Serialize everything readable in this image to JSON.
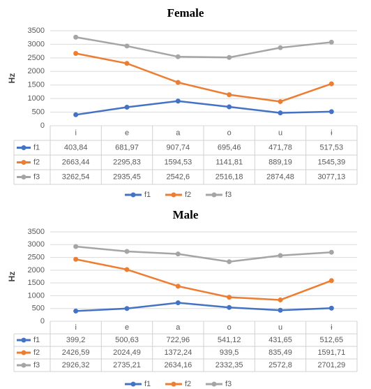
{
  "chart_data": [
    {
      "type": "line",
      "title": "Female",
      "y_label": "Hz",
      "categories": [
        "i",
        "e",
        "a",
        "o",
        "u",
        "ɨ"
      ],
      "series": [
        {
          "name": "f1",
          "color": "#4472c4",
          "values": [
            403.84,
            681.97,
            907.74,
            695.46,
            471.78,
            517.53
          ],
          "value_labels": [
            "403,84",
            "681,97",
            "907,74",
            "695,46",
            "471,78",
            "517,53"
          ]
        },
        {
          "name": "f2",
          "color": "#ed7d31",
          "values": [
            2663.44,
            2295.83,
            1594.53,
            1141.81,
            889.19,
            1545.39
          ],
          "value_labels": [
            "2663,44",
            "2295,83",
            "1594,53",
            "1141,81",
            "889,19",
            "1545,39"
          ]
        },
        {
          "name": "f3",
          "color": "#a5a5a5",
          "values": [
            3262.54,
            2935.45,
            2542.6,
            2516.18,
            2874.48,
            3077.13
          ],
          "value_labels": [
            "3262,54",
            "2935,45",
            "2542,6",
            "2516,18",
            "2874,48",
            "3077,13"
          ]
        }
      ],
      "ylim": [
        0,
        3500
      ],
      "yticks": [
        0,
        500,
        1000,
        1500,
        2000,
        2500,
        3000,
        3500
      ],
      "grid": true
    },
    {
      "type": "line",
      "title": "Male",
      "y_label": "Hz",
      "categories": [
        "i",
        "e",
        "a",
        "o",
        "u",
        "ɨ"
      ],
      "series": [
        {
          "name": "f1",
          "color": "#4472c4",
          "values": [
            399.2,
            500.63,
            722.96,
            541.12,
            431.65,
            512.65
          ],
          "value_labels": [
            "399,2",
            "500,63",
            "722,96",
            "541,12",
            "431,65",
            "512,65"
          ]
        },
        {
          "name": "f2",
          "color": "#ed7d31",
          "values": [
            2426.59,
            2024.49,
            1372.24,
            939.5,
            835.49,
            1591.71
          ],
          "value_labels": [
            "2426,59",
            "2024,49",
            "1372,24",
            "939,5",
            "835,49",
            "1591,71"
          ]
        },
        {
          "name": "f3",
          "color": "#a5a5a5",
          "values": [
            2926.32,
            2735.21,
            2634.16,
            2332.35,
            2572.8,
            2701.29
          ],
          "value_labels": [
            "2926,32",
            "2735,21",
            "2634,16",
            "2332,35",
            "2572,8",
            "2701,29"
          ]
        }
      ],
      "ylim": [
        0,
        3500
      ],
      "yticks": [
        0,
        500,
        1000,
        1500,
        2000,
        2500,
        3000,
        3500
      ],
      "grid": true
    }
  ]
}
